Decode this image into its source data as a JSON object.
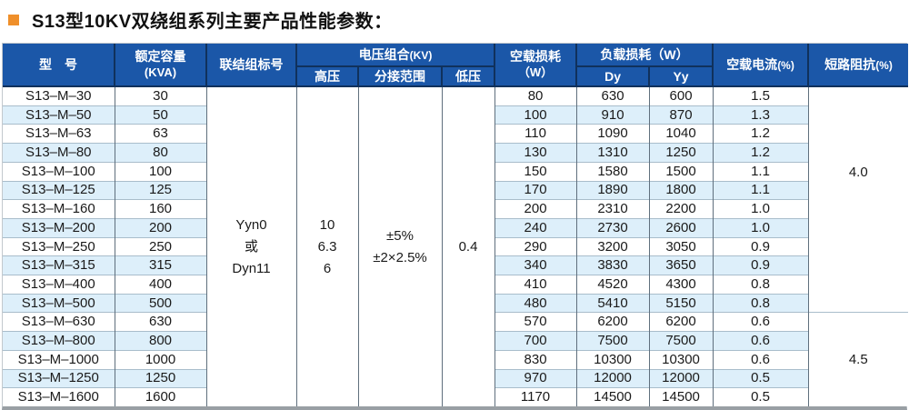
{
  "title": {
    "text": "S13型10KV双绕组系列主要产品性能参数：",
    "bullet_color": "#ef8f2a"
  },
  "colors": {
    "header_background": "#1b57a8",
    "header_text": "#ffffff",
    "row_stripe": "#ddeffa",
    "title_bullet": "#ef8f2a"
  },
  "table": {
    "headers": {
      "model": "型　号",
      "rated_capacity_line1": "额定容量",
      "rated_capacity_line2": "(KVA)",
      "connection_symbol": "联结组标号",
      "voltage_combination": "电压组合",
      "voltage_combination_suffix": "(KV)",
      "hv": "高压",
      "tap_range": "分接范围",
      "lv": "低压",
      "no_load_loss_line1": "空载损耗",
      "no_load_loss_line2": "（W）",
      "load_loss": "负载损耗（W）",
      "dy": "Dy",
      "yy": "Yy",
      "no_load_current": "空载电流",
      "no_load_current_suffix": "(%)",
      "short_circuit_impedance": "短路阻抗",
      "short_circuit_impedance_suffix": "(%)"
    },
    "merged_cells": {
      "connection_symbol": "Yyn0\n或\nDyn11",
      "hv": "10\n6.3\n6",
      "tap_range": "±5%\n±2×2.5%",
      "lv": "0.4",
      "impedance_groups": [
        {
          "value": "4.0",
          "row_start": 1,
          "row_span": 12
        },
        {
          "value": "4.5",
          "row_start": 13,
          "row_span": 5
        }
      ]
    },
    "row_columns": [
      "model",
      "rated_capacity_kva",
      "no_load_loss_w",
      "load_loss_dy_w",
      "load_loss_yy_w",
      "no_load_current_pct"
    ],
    "rows": [
      [
        "S13–M–30",
        "30",
        "80",
        "630",
        "600",
        "1.5"
      ],
      [
        "S13–M–50",
        "50",
        "100",
        "910",
        "870",
        "1.3"
      ],
      [
        "S13–M–63",
        "63",
        "110",
        "1090",
        "1040",
        "1.2"
      ],
      [
        "S13–M–80",
        "80",
        "130",
        "1310",
        "1250",
        "1.2"
      ],
      [
        "S13–M–100",
        "100",
        "150",
        "1580",
        "1500",
        "1.1"
      ],
      [
        "S13–M–125",
        "125",
        "170",
        "1890",
        "1800",
        "1.1"
      ],
      [
        "S13–M–160",
        "160",
        "200",
        "2310",
        "2200",
        "1.0"
      ],
      [
        "S13–M–200",
        "200",
        "240",
        "2730",
        "2600",
        "1.0"
      ],
      [
        "S13–M–250",
        "250",
        "290",
        "3200",
        "3050",
        "0.9"
      ],
      [
        "S13–M–315",
        "315",
        "340",
        "3830",
        "3650",
        "0.9"
      ],
      [
        "S13–M–400",
        "400",
        "410",
        "4520",
        "4300",
        "0.8"
      ],
      [
        "S13–M–500",
        "500",
        "480",
        "5410",
        "5150",
        "0.8"
      ],
      [
        "S13–M–630",
        "630",
        "570",
        "6200",
        "6200",
        "0.6"
      ],
      [
        "S13–M–800",
        "800",
        "700",
        "7500",
        "7500",
        "0.6"
      ],
      [
        "S13–M–1000",
        "1000",
        "830",
        "10300",
        "10300",
        "0.6"
      ],
      [
        "S13–M–1250",
        "1250",
        "970",
        "12000",
        "12000",
        "0.5"
      ],
      [
        "S13–M–1600",
        "1600",
        "1170",
        "14500",
        "14500",
        "0.5"
      ]
    ]
  }
}
